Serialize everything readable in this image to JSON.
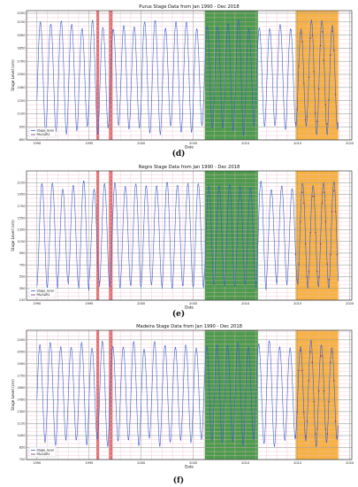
{
  "chart_data": [
    {
      "type": "line",
      "caption": "(d)",
      "title": "Purus Stage Data from Jan 1990 - Dec 2018",
      "xlabel": "Date",
      "ylabel": "Stage Level (cm)",
      "xlim": [
        1989.0,
        2020.2
      ],
      "ylim": [
        800,
        2280
      ],
      "xticks": [
        1990,
        1995,
        2000,
        2005,
        2010,
        2015,
        2020
      ],
      "yticks": [
        800,
        950,
        1100,
        1250,
        1400,
        1550,
        1700,
        1850,
        2000,
        2150,
        2250
      ],
      "ytick_labels": [
        "800",
        "950",
        "1100",
        "1250",
        "1400",
        "1550",
        "1700",
        "1850",
        "2000",
        "2150",
        "2250"
      ],
      "grid": true,
      "legend": {
        "position": "lower-left",
        "entries": [
          "Stage_level",
          "PALSAR2"
        ]
      },
      "highlights": [
        {
          "from": 1995.7,
          "to": 1995.95,
          "color": "#d94040"
        },
        {
          "from": 1996.9,
          "to": 1997.25,
          "color": "#d94040"
        },
        {
          "from": 2006.1,
          "to": 2011.2,
          "color": "#2e8b2e"
        },
        {
          "from": 2014.8,
          "to": 2018.9,
          "color": "#f5a623"
        }
      ],
      "series": [
        {
          "name": "Stage_level",
          "color": "#3a5fcd",
          "x_start": 1990.0,
          "x_end": 2018.9,
          "years": 29,
          "min": 850,
          "max": 2180,
          "peak_phase": 0.33
        }
      ],
      "markers": {
        "name": "PALSAR2",
        "from": 2014.8,
        "to": 2018.9,
        "color": "#7a2f7a"
      }
    },
    {
      "type": "line",
      "caption": "(e)",
      "title": "Negro Stage Data from Jan 1990 - Dec 2018",
      "xlabel": "Date",
      "ylabel": "Stage Level (cm)",
      "xlim": [
        1989.0,
        2020.2
      ],
      "ylim": [
        150,
        2350
      ],
      "xticks": [
        1990,
        1995,
        2000,
        2005,
        2010,
        2015,
        2020
      ],
      "yticks": [
        150,
        350,
        550,
        750,
        950,
        1150,
        1350,
        1550,
        1750,
        1950,
        2150
      ],
      "ytick_labels": [
        "150",
        "350",
        "550",
        "750",
        "950",
        "1150",
        "1350",
        "1550",
        "1750",
        "1950",
        "2150"
      ],
      "grid": true,
      "legend": {
        "position": "lower-left",
        "entries": [
          "Stage_level",
          "PALSAR2"
        ]
      },
      "highlights": [
        {
          "from": 1995.7,
          "to": 1995.95,
          "color": "#d94040"
        },
        {
          "from": 1996.9,
          "to": 1997.25,
          "color": "#d94040"
        },
        {
          "from": 2006.1,
          "to": 2011.2,
          "color": "#2e8b2e"
        },
        {
          "from": 2014.8,
          "to": 2018.9,
          "color": "#f5a623"
        }
      ],
      "series": [
        {
          "name": "Stage_level",
          "color": "#3a5fcd",
          "x_start": 1990.0,
          "x_end": 2018.9,
          "years": 29,
          "min": 300,
          "max": 2200,
          "peak_phase": 0.48
        }
      ],
      "markers": {
        "name": "PALSAR2",
        "from": 2014.8,
        "to": 2018.9,
        "color": "#7a2f7a"
      }
    },
    {
      "type": "line",
      "caption": "(f)",
      "title": "Madeira Stage Data from Jan 1990 - Dec 2018",
      "xlabel": "Date",
      "ylabel": "Stage Level (cm)",
      "xlim": [
        1989.0,
        2020.2
      ],
      "ylim": [
        700,
        2320
      ],
      "xticks": [
        1990,
        1995,
        2000,
        2005,
        2010,
        2015,
        2020
      ],
      "yticks": [
        700,
        850,
        1000,
        1150,
        1300,
        1450,
        1600,
        1750,
        1900,
        2050,
        2200
      ],
      "ytick_labels": [
        "700",
        "850",
        "1000",
        "1150",
        "1300",
        "1450",
        "1600",
        "1750",
        "1900",
        "2050",
        "2200"
      ],
      "grid": true,
      "legend": {
        "position": "lower-left",
        "entries": [
          "Stage_level",
          "PALSAR2"
        ]
      },
      "highlights": [
        {
          "from": 1995.7,
          "to": 1995.95,
          "color": "#d94040"
        },
        {
          "from": 1996.9,
          "to": 1997.25,
          "color": "#d94040"
        },
        {
          "from": 2006.1,
          "to": 2011.2,
          "color": "#2e8b2e"
        },
        {
          "from": 2014.8,
          "to": 2018.9,
          "color": "#f5a623"
        }
      ],
      "series": [
        {
          "name": "Stage_level",
          "color": "#3a5fcd",
          "x_start": 1990.0,
          "x_end": 2018.9,
          "years": 29,
          "min": 850,
          "max": 2200,
          "peak_phase": 0.28
        }
      ],
      "markers": {
        "name": "PALSAR2",
        "from": 2014.8,
        "to": 2018.9,
        "color": "#7a2f7a"
      }
    }
  ]
}
